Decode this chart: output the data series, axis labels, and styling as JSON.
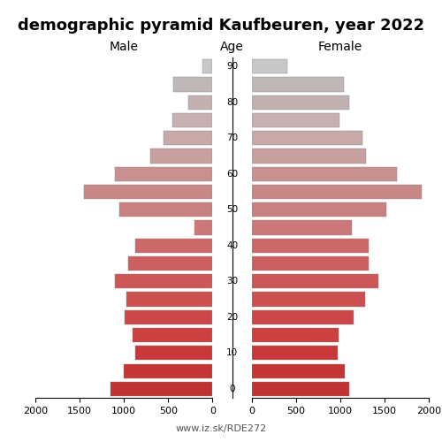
{
  "title": "demographic pyramid Kaufbeuren, year 2022",
  "label_left": "Male",
  "label_right": "Female",
  "label_center": "Age",
  "footnote": "www.iz.sk/RDE272",
  "age_groups": [
    0,
    5,
    10,
    15,
    20,
    25,
    30,
    35,
    40,
    45,
    50,
    55,
    60,
    65,
    70,
    75,
    80,
    85,
    90
  ],
  "male": [
    1150,
    1000,
    870,
    900,
    990,
    970,
    1100,
    950,
    870,
    200,
    1050,
    1450,
    1100,
    700,
    550,
    450,
    270,
    440,
    110
  ],
  "female": [
    1100,
    1050,
    970,
    980,
    1150,
    1280,
    1430,
    1320,
    1320,
    1130,
    1520,
    1920,
    1640,
    1290,
    1250,
    990,
    1100,
    1040,
    400
  ],
  "xlim": 2000,
  "bar_height": 0.8,
  "background_color": "#ffffff",
  "xticks": [
    0,
    500,
    1000,
    1500,
    2000
  ],
  "title_fontsize": 13,
  "label_fontsize": 10,
  "tick_fontsize": 8,
  "color_scheme": [
    "#c03333",
    "#c43535",
    "#c83838",
    "#cc4040",
    "#cc4848",
    "#cc5050",
    "#cc5858",
    "#cc6060",
    "#cc6868",
    "#cc7878",
    "#c88080",
    "#c88888",
    "#c89090",
    "#c8a0a0",
    "#c8a8a8",
    "#c8b0b0",
    "#c0b0b0",
    "#c0b8b8",
    "#c8c8c8"
  ]
}
